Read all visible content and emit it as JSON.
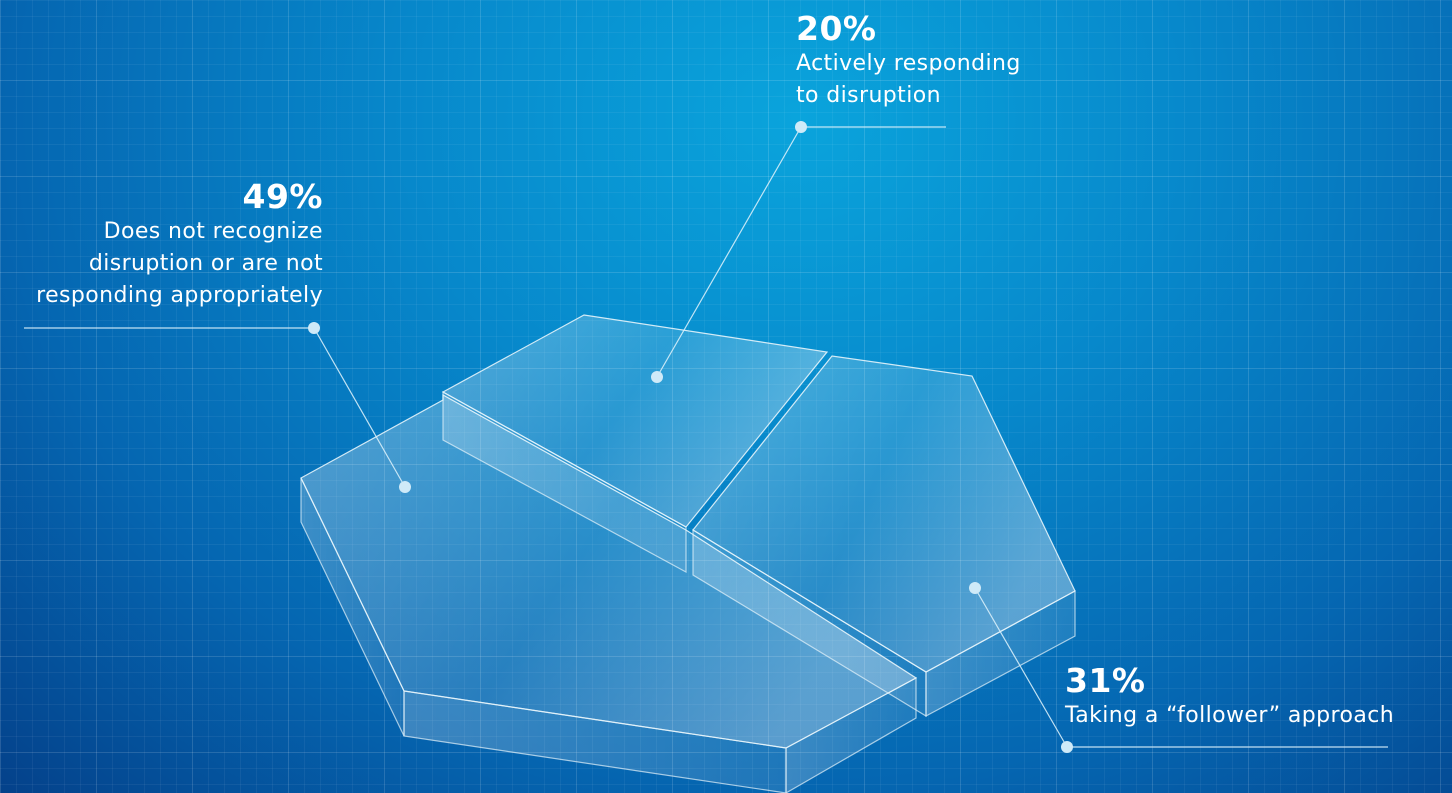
{
  "chart_data": {
    "type": "pie",
    "slices": [
      {
        "value": 49,
        "label": "49%",
        "description": "Does not recognize\ndisruption or are not\nresponding appropriately"
      },
      {
        "value": 20,
        "label": "20%",
        "description": "Actively responding\nto disruption"
      },
      {
        "value": 31,
        "label": "31%",
        "description": "Taking a “follower” approach"
      }
    ],
    "colors": {
      "background": "#0788cb",
      "panel_stroke": "#e6f4fb",
      "leader": "#d7eef9"
    }
  }
}
